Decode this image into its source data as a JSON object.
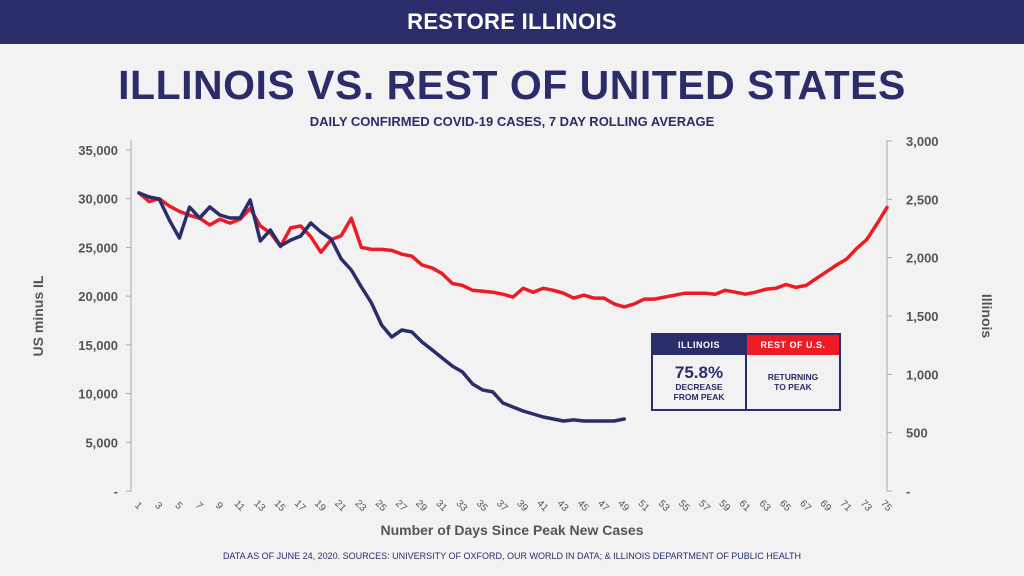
{
  "header": {
    "banner": "RESTORE ILLINOIS"
  },
  "colors": {
    "navy": "#2b2d6b",
    "red": "#ed1c24"
  },
  "footer": "DATA AS OF JUNE 24, 2020. SOURCES: UNIVERSITY OF OXFORD, OUR WORLD IN DATA; & ILLINOIS DEPARTMENT OF PUBLIC HEALTH",
  "legend": {
    "illinois": {
      "label": "ILLINOIS",
      "value": "75.8%",
      "line1": "DECREASE",
      "line2": "FROM PEAK"
    },
    "rest": {
      "label": "REST OF U.S.",
      "line1": "RETURNING",
      "line2": "TO PEAK"
    }
  },
  "chart_data": {
    "type": "line",
    "title": "ILLINOIS VS. REST OF UNITED STATES",
    "subtitle": "DAILY CONFIRMED COVID-19 CASES, 7 DAY ROLLING AVERAGE",
    "xlabel": "Number of Days Since Peak New Cases",
    "ylabel_left": "US minus IL",
    "ylabel_right": "Illinois",
    "xlim": [
      1,
      75
    ],
    "ylim_left": [
      0,
      35000
    ],
    "ylim_right": [
      0,
      3000
    ],
    "x_ticks": [
      "1",
      "3",
      "5",
      "7",
      "9",
      "11",
      "13",
      "15",
      "17",
      "19",
      "21",
      "23",
      "25",
      "27",
      "29",
      "31",
      "33",
      "35",
      "37",
      "39",
      "41",
      "43",
      "45",
      "47",
      "49",
      "51",
      "53",
      "55",
      "57",
      "59",
      "61",
      "63",
      "65",
      "67",
      "69",
      "71",
      "73",
      "75"
    ],
    "y_ticks_left": [
      "-",
      "5,000",
      "10,000",
      "15,000",
      "20,000",
      "25,000",
      "30,000",
      "35,000"
    ],
    "y_ticks_right": [
      "-",
      "500",
      "1,000",
      "1,500",
      "2,000",
      "2,500",
      "3,000"
    ],
    "grid": false,
    "series": [
      {
        "name": "REST OF U.S.",
        "axis": "left",
        "color": "#ed1c24",
        "values": [
          30600,
          29700,
          30000,
          29250,
          28700,
          28300,
          28000,
          27300,
          27900,
          27500,
          27900,
          29000,
          27200,
          26500,
          25100,
          27000,
          27200,
          26100,
          24500,
          25800,
          26200,
          28000,
          25000,
          24800,
          24800,
          24700,
          24300,
          24100,
          23200,
          22900,
          22300,
          21300,
          21100,
          20600,
          20500,
          20400,
          20200,
          19900,
          20800,
          20400,
          20800,
          20600,
          20300,
          19800,
          20100,
          19800,
          19800,
          19200,
          18900,
          19200,
          19700,
          19700,
          19900,
          20100,
          20300,
          20300,
          20300,
          20200,
          20600,
          20400,
          20200,
          20400,
          20700,
          20800,
          21200,
          20900,
          21100,
          21800,
          22500,
          23200,
          23800,
          24900,
          25800,
          27400,
          29100
        ]
      },
      {
        "name": "ILLINOIS",
        "axis": "right",
        "color": "#2b2d6b",
        "values": [
          2554,
          2520,
          2503,
          2323,
          2169,
          2434,
          2340,
          2434,
          2366,
          2340,
          2340,
          2494,
          2143,
          2237,
          2100,
          2151,
          2186,
          2297,
          2220,
          2160,
          1989,
          1894,
          1749,
          1611,
          1423,
          1320,
          1380,
          1363,
          1277,
          1209,
          1140,
          1071,
          1020,
          917,
          866,
          849,
          754,
          720,
          686,
          660,
          634,
          617,
          600,
          609,
          600,
          600,
          600,
          600,
          617
        ]
      }
    ]
  }
}
